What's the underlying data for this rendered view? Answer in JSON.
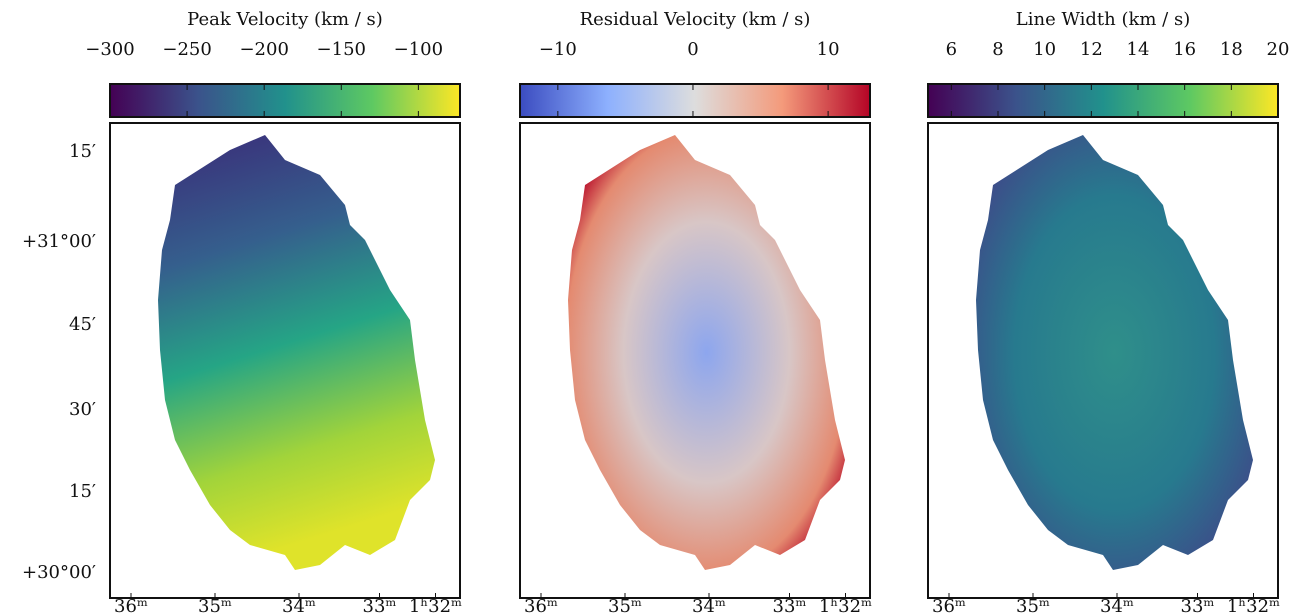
{
  "chart_data": [
    {
      "type": "heatmap",
      "title": "Peak Velocity (km / s)",
      "colormap": "viridis",
      "clim": [
        -300,
        -73
      ],
      "cticks": [
        {
          "value": -300,
          "label": "−300"
        },
        {
          "value": -250,
          "label": "−250"
        },
        {
          "value": -200,
          "label": "−200"
        },
        {
          "value": -150,
          "label": "−150"
        },
        {
          "value": -100,
          "label": "−100"
        }
      ],
      "xtick_labels": [
        "36ᵐ",
        "35ᵐ",
        "34ᵐ",
        "33ᵐ",
        "1ʰ32ᵐ"
      ],
      "ytick_labels": [
        "15′",
        "+31°00′",
        "45′",
        "30′",
        "15′",
        "+30°00′"
      ]
    },
    {
      "type": "heatmap",
      "title": "Residual Velocity (km / s)",
      "colormap": "coolwarm",
      "clim": [
        -12.8,
        13.1
      ],
      "cticks": [
        {
          "value": -10,
          "label": "−10"
        },
        0,
        10
      ],
      "xtick_labels": [
        "36ᵐ",
        "35ᵐ",
        "34ᵐ",
        "33ᵐ",
        "1ʰ32ᵐ"
      ]
    },
    {
      "type": "heatmap",
      "title": "Line Width (km / s)",
      "colormap": "viridis",
      "clim": [
        5,
        20
      ],
      "cticks": [
        6,
        8,
        10,
        12,
        14,
        16,
        18,
        20
      ],
      "xtick_labels": [
        "36ᵐ",
        "35ᵐ",
        "34ᵐ",
        "33ᵐ",
        "1ʰ32ᵐ"
      ]
    }
  ]
}
